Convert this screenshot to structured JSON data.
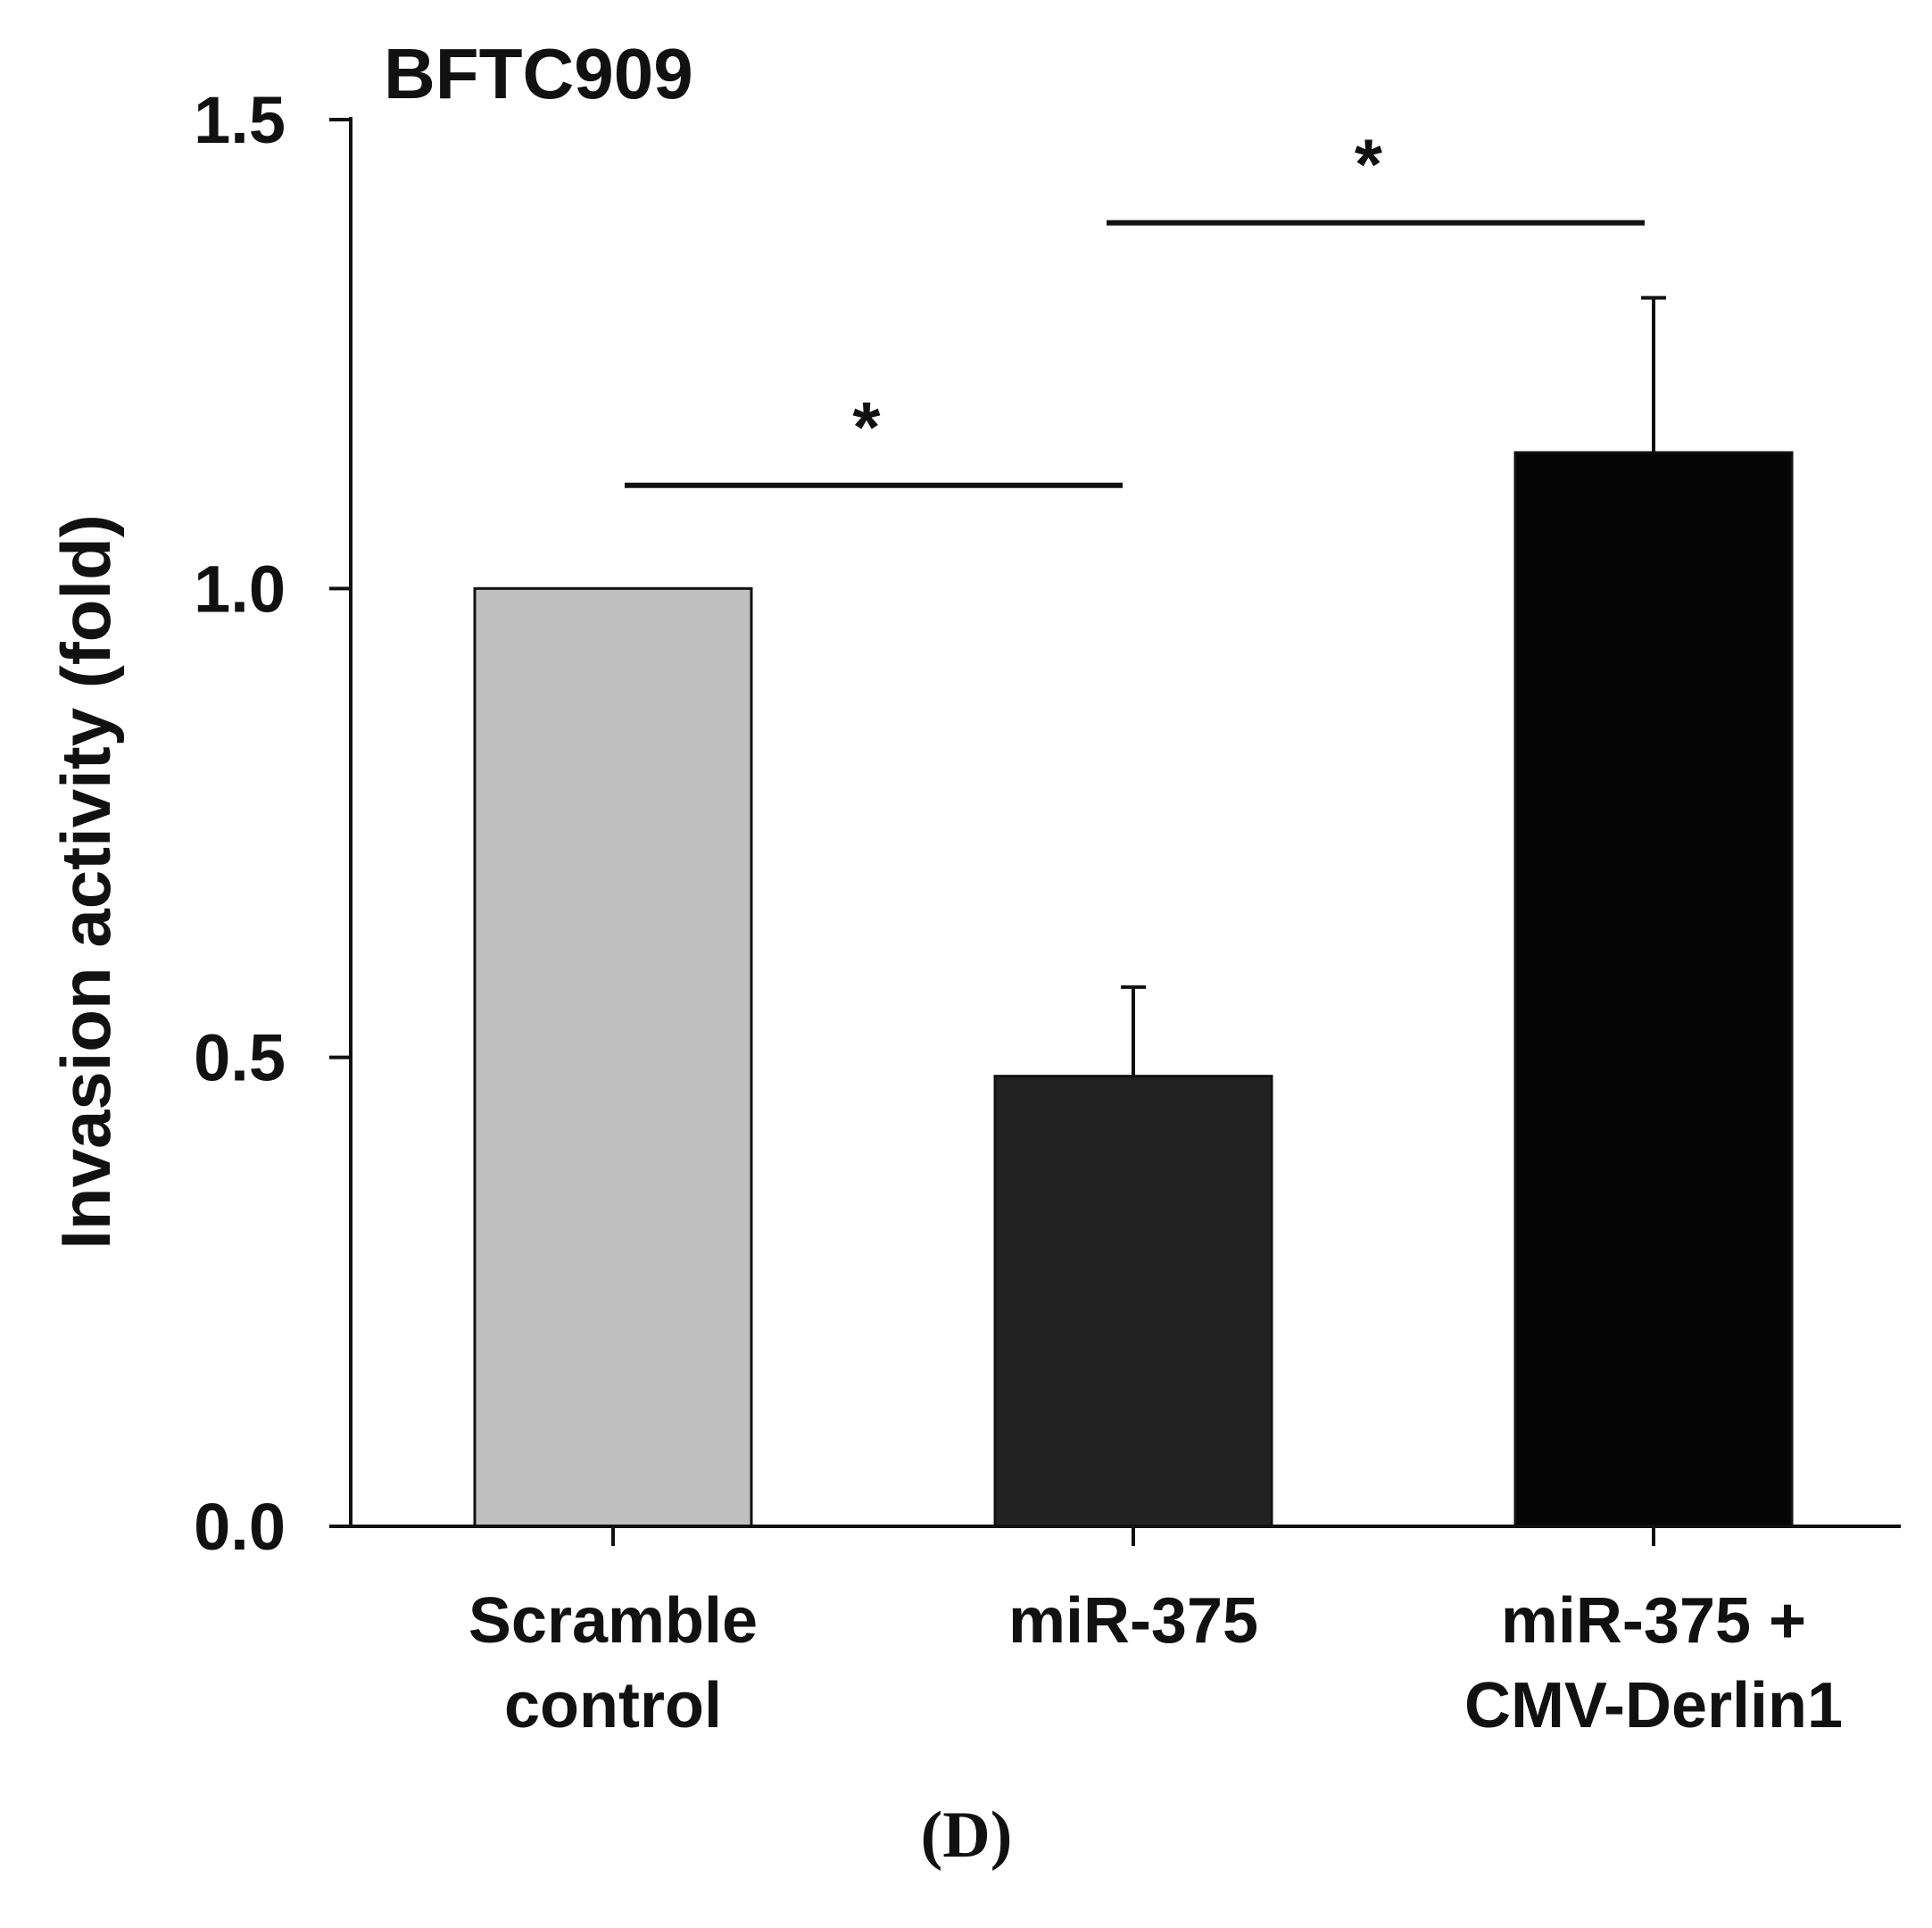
{
  "chart_data": {
    "type": "bar",
    "title": "BFTC909",
    "panel_label": "(D)",
    "xlabel": "",
    "ylabel": "Invasion activity (fold)",
    "ylim": [
      0,
      1.5
    ],
    "yticks": [
      0.0,
      0.5,
      1.0,
      1.5
    ],
    "ytick_labels": [
      "0.0",
      "0.5",
      "1.0",
      "1.5"
    ],
    "categories": [
      {
        "line1": "Scramble",
        "line2": "control"
      },
      {
        "line1": "miR-375",
        "line2": ""
      },
      {
        "line1": "miR-375 +",
        "line2": "CMV-Derlin1"
      }
    ],
    "values": [
      1.0,
      0.48,
      1.145
    ],
    "errors": [
      0.0,
      0.095,
      0.165
    ],
    "bar_colors": [
      "#c0c0c0",
      "#222222",
      "#050505"
    ],
    "significance": [
      {
        "from": 0,
        "to": 1,
        "label": "*",
        "y": 1.11
      },
      {
        "from": 1,
        "to": 2,
        "label": "*",
        "y": 1.39
      }
    ]
  }
}
